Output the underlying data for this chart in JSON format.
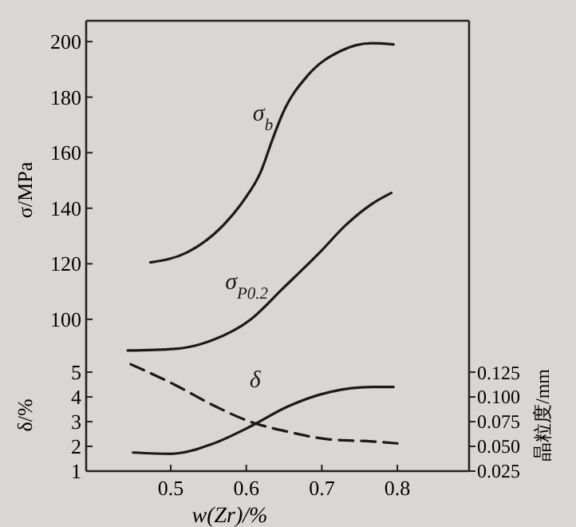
{
  "chart_data": [
    {
      "type": "line",
      "ylabel": "σ/MPa",
      "xlim": [
        0.388,
        0.895
      ],
      "ylim": [
        85.6,
        207.5
      ],
      "yticks": [
        100,
        120,
        140,
        160,
        180,
        200
      ],
      "tick_labels": "y",
      "series": [
        {
          "name": "σ$_{b}$",
          "color": "#1a1a1a",
          "x": [
            0.473,
            0.521,
            0.57,
            0.597,
            0.619,
            0.635,
            0.648,
            0.682,
            0.724,
            0.766,
            0.795
          ],
          "values": [
            120.5,
            124,
            134,
            143,
            153,
            165,
            174,
            188,
            196.5,
            199.4,
            199
          ]
        },
        {
          "name": "σ$_{P0.2}$",
          "color": "#1a1a1a",
          "x": [
            0.443,
            0.506,
            0.555,
            0.606,
            0.648,
            0.697,
            0.732,
            0.766,
            0.792
          ],
          "values": [
            88.8,
            89.4,
            92.5,
            100,
            111,
            124,
            134,
            141.5,
            145.5
          ]
        }
      ]
    },
    {
      "type": "line",
      "xlabel": "w(Zr)/%",
      "ylabel": "δ/%",
      "y2label": "晶粒度/mm",
      "xlim": [
        0.388,
        0.895
      ],
      "ylim": [
        1,
        5.52
      ],
      "yticks": [
        1,
        2,
        3,
        4,
        5
      ],
      "y2lim": [
        0.025,
        0.138
      ],
      "y2ticks": [
        {
          "value": 0.025,
          "label": "0.025"
        },
        {
          "value": 0.05,
          "label": "0.050"
        },
        {
          "value": 0.075,
          "label": "0.075"
        },
        {
          "value": 0.1,
          "label": "0.100"
        },
        {
          "value": 0.125,
          "label": "0.125"
        }
      ],
      "xticks": [
        0.5,
        0.6,
        0.7,
        0.8
      ],
      "series": [
        {
          "name": "δ",
          "color": "#1a1a1a",
          "line_style": "solid",
          "x": [
            0.45,
            0.5,
            0.555,
            0.605,
            0.654,
            0.711,
            0.766,
            0.795
          ],
          "values": [
            1.75,
            1.7,
            2.1,
            2.8,
            3.6,
            4.2,
            4.4,
            4.4
          ]
        },
        {
          "color": "#1a1a1a",
          "axis": "y2",
          "line_style": "dashed",
          "x": [
            0.447,
            0.506,
            0.555,
            0.605,
            0.654,
            0.711,
            0.766,
            0.8
          ],
          "values": [
            0.133,
            0.112,
            0.092,
            0.075,
            0.065,
            0.057,
            0.055,
            0.053
          ]
        }
      ]
    }
  ]
}
